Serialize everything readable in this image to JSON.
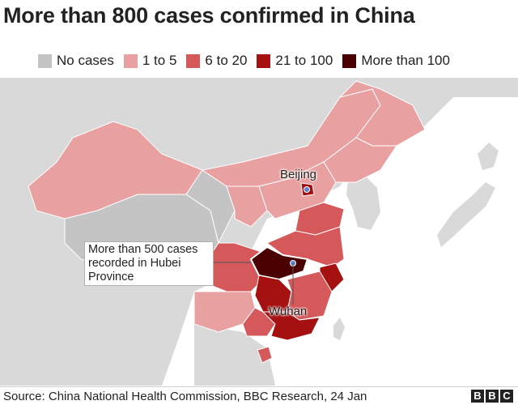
{
  "title": "More than 800 cases confirmed in China",
  "legend": [
    {
      "label": "No cases",
      "color": "#c4c4c4"
    },
    {
      "label": "1 to 5",
      "color": "#e8a0a0"
    },
    {
      "label": "6 to 20",
      "color": "#d5585a"
    },
    {
      "label": "21 to 100",
      "color": "#a51010"
    },
    {
      "label": "More than 100",
      "color": "#4a0000"
    }
  ],
  "labels": {
    "beijing": "Beijing",
    "wuhan": "Wuhan",
    "hubei_note": "More than 500 cases recorded in Hubei Province"
  },
  "colors": {
    "land": "#d9d9d9",
    "sea": "#ffffff",
    "border": "#ffffff"
  },
  "source": "Source: China National Health Commission, BBC Research, 24 Jan",
  "logo": "BBC"
}
